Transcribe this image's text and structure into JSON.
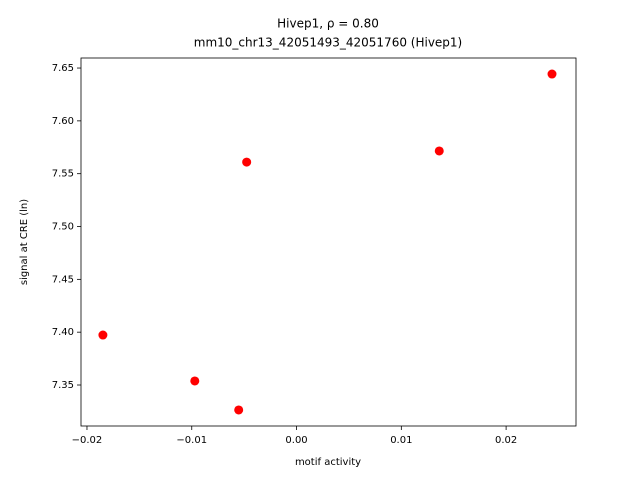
{
  "chart_data": {
    "type": "scatter",
    "title": "Hivep1, ρ = 0.80",
    "subtitle": "mm10_chr13_42051493_42051760 (Hivep1)",
    "x_label": "motif activity",
    "y_label": "signal at CRE (ln)",
    "x": [
      0.02438,
      0.01362,
      -0.00476,
      -0.01848,
      -0.00971,
      -0.00552
    ],
    "values": [
      7.6443,
      7.5715,
      7.561,
      7.3973,
      7.3538,
      7.3264
    ],
    "color": "#ff0000",
    "xlim": [
      -0.02057,
      0.02667
    ],
    "ylim": [
      7.3112,
      7.6595
    ],
    "xticks": [
      {
        "value": -0.02,
        "label": "−0.02"
      },
      {
        "value": -0.01,
        "label": "−0.01"
      },
      {
        "value": 0,
        "label": "0.00"
      },
      0.01,
      0.02
    ],
    "yticks": [
      7.35,
      {
        "value": 7.4,
        "label": "7.40"
      },
      7.45,
      {
        "value": 7.5,
        "label": "7.50"
      },
      7.55,
      {
        "value": 7.6,
        "label": "7.60"
      },
      7.65
    ]
  }
}
